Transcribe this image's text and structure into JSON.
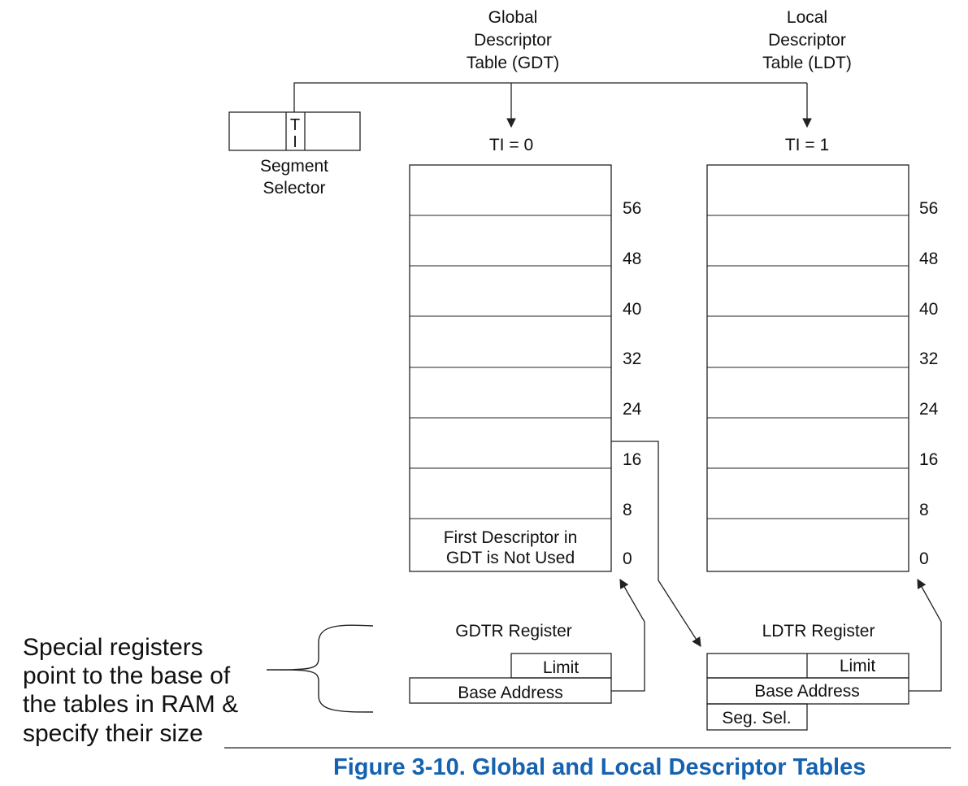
{
  "headers": {
    "gdt": [
      "Global",
      "Descriptor",
      "Table (GDT)"
    ],
    "ldt": [
      "Local",
      "Descriptor",
      "Table (LDT)"
    ]
  },
  "selector": {
    "ti_top": "T",
    "ti_bottom": "I",
    "label": [
      "Segment",
      "Selector"
    ]
  },
  "gdt": {
    "ti_label": "TI = 0",
    "offsets": [
      "56",
      "48",
      "40",
      "32",
      "24",
      "16",
      "8",
      "0"
    ],
    "first_entry": [
      "First Descriptor in",
      "GDT is Not Used"
    ]
  },
  "ldt": {
    "ti_label": "TI = 1",
    "offsets": [
      "56",
      "48",
      "40",
      "32",
      "24",
      "16",
      "8",
      "0"
    ]
  },
  "gdtr": {
    "title": "GDTR Register",
    "limit": "Limit",
    "base": "Base Address"
  },
  "ldtr": {
    "title": "LDTR Register",
    "limit": "Limit",
    "base": "Base Address",
    "seg_sel": "Seg. Sel."
  },
  "note": [
    "Special registers",
    "point to the base of",
    "the tables in RAM &",
    "specify their size"
  ],
  "caption": "Figure 3-10.  Global and Local Descriptor Tables",
  "colors": {
    "caption": "#1462b0",
    "lines": "#222222"
  }
}
